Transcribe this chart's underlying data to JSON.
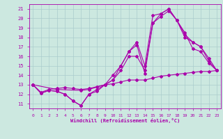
{
  "xlabel": "Windchill (Refroidissement éolien,°C)",
  "background_color": "#cce8e0",
  "grid_color": "#aacccc",
  "line_color": "#aa00aa",
  "xlim": [
    -0.5,
    23.5
  ],
  "ylim": [
    10.5,
    21.5
  ],
  "xticks": [
    0,
    1,
    2,
    3,
    4,
    5,
    6,
    7,
    8,
    9,
    10,
    11,
    12,
    13,
    14,
    15,
    16,
    17,
    18,
    19,
    20,
    21,
    22,
    23
  ],
  "yticks": [
    11,
    12,
    13,
    14,
    15,
    16,
    17,
    18,
    19,
    20,
    21
  ],
  "lines": [
    {
      "x": [
        0,
        1,
        2,
        3,
        4,
        5,
        6,
        7,
        8,
        9,
        10,
        11,
        12,
        13,
        14,
        15,
        16,
        17,
        18,
        19,
        20,
        21,
        22,
        23
      ],
      "y": [
        13,
        12.2,
        12.5,
        12.6,
        12.7,
        12.6,
        12.5,
        12.6,
        12.8,
        13.0,
        13.1,
        13.3,
        13.5,
        13.5,
        13.5,
        13.7,
        13.9,
        14.0,
        14.1,
        14.2,
        14.3,
        14.4,
        14.4,
        14.5
      ]
    },
    {
      "x": [
        0,
        1,
        2,
        3,
        4,
        5,
        6,
        7,
        8,
        9,
        10,
        11,
        12,
        13,
        14,
        15,
        16,
        17,
        18,
        19,
        20,
        21,
        22,
        23
      ],
      "y": [
        13,
        12.1,
        12.4,
        12.3,
        12.0,
        11.3,
        10.8,
        12.0,
        12.3,
        13.0,
        13.5,
        14.5,
        16.0,
        16.0,
        14.5,
        19.5,
        20.5,
        21.0,
        19.8,
        18.5,
        16.8,
        16.5,
        15.3,
        14.5
      ]
    },
    {
      "x": [
        0,
        1,
        2,
        3,
        4,
        5,
        6,
        7,
        8,
        9,
        10,
        11,
        12,
        13,
        14,
        15,
        16,
        17,
        18,
        19,
        20,
        21,
        22,
        23
      ],
      "y": [
        13,
        12.1,
        12.4,
        12.3,
        12.0,
        11.3,
        10.8,
        12.0,
        12.5,
        13.0,
        14.0,
        15.0,
        16.5,
        17.2,
        14.2,
        19.5,
        20.2,
        20.8,
        19.8,
        18.3,
        17.5,
        17.0,
        15.5,
        14.5
      ]
    },
    {
      "x": [
        0,
        3,
        6,
        7,
        9,
        10,
        11,
        12,
        13,
        14,
        15,
        16,
        17,
        18,
        19,
        20,
        21,
        22,
        23
      ],
      "y": [
        13,
        12.5,
        12.4,
        12.5,
        13.0,
        13.5,
        15.0,
        16.5,
        17.5,
        15.0,
        20.3,
        20.5,
        21.0,
        19.8,
        18.0,
        17.5,
        17.0,
        15.8,
        14.5
      ]
    }
  ]
}
